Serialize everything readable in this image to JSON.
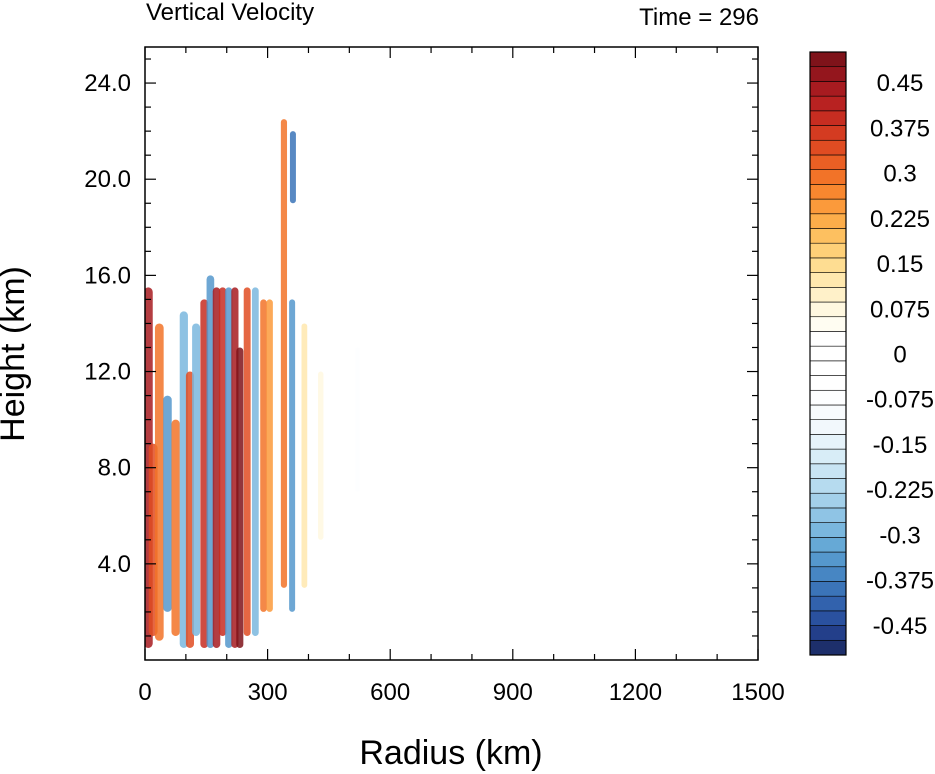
{
  "chart_data": {
    "type": "heatmap",
    "title": "Vertical Velocity",
    "time_label": "Time = 296",
    "xlabel": "Radius (km)",
    "ylabel": "Height (km)",
    "xlim": [
      0,
      1500
    ],
    "ylim": [
      0,
      25.5
    ],
    "x_ticks": [
      0,
      300,
      600,
      900,
      1200,
      1500
    ],
    "x_tick_labels": [
      "0",
      "300",
      "600",
      "900",
      "1200",
      "1500"
    ],
    "y_ticks": [
      4,
      8,
      12,
      16,
      20,
      24
    ],
    "y_tick_labels": [
      "4.0",
      "8.0",
      "12.0",
      "16.0",
      "20.0",
      "24.0"
    ],
    "colorbar": {
      "levels": [
        -0.5,
        -0.475,
        -0.45,
        -0.425,
        -0.4,
        -0.375,
        -0.35,
        -0.325,
        -0.3,
        -0.275,
        -0.25,
        -0.225,
        -0.2,
        -0.175,
        -0.15,
        -0.125,
        -0.1,
        -0.075,
        -0.05,
        -0.025,
        0,
        0.025,
        0.05,
        0.075,
        0.1,
        0.125,
        0.15,
        0.175,
        0.2,
        0.225,
        0.25,
        0.275,
        0.3,
        0.325,
        0.35,
        0.375,
        0.4,
        0.425,
        0.45,
        0.475,
        0.5
      ],
      "labels": [
        {
          "value": 0.45,
          "text": "0.45"
        },
        {
          "value": 0.375,
          "text": "0.375"
        },
        {
          "value": 0.3,
          "text": "0.3"
        },
        {
          "value": 0.225,
          "text": "0.225"
        },
        {
          "value": 0.15,
          "text": "0.15"
        },
        {
          "value": 0.075,
          "text": "0.075"
        },
        {
          "value": 0,
          "text": "0"
        },
        {
          "value": -0.075,
          "text": "-0.075"
        },
        {
          "value": -0.15,
          "text": "-0.15"
        },
        {
          "value": -0.225,
          "text": "-0.225"
        },
        {
          "value": -0.3,
          "text": "-0.3"
        },
        {
          "value": -0.375,
          "text": "-0.375"
        },
        {
          "value": -0.45,
          "text": "-0.45"
        }
      ],
      "colors": [
        "#1d2f6b",
        "#233f8a",
        "#2a519f",
        "#3262ad",
        "#3b74b8",
        "#4786c3",
        "#5598cd",
        "#66a9d6",
        "#7ab7de",
        "#8fc4e5",
        "#a3d0ea",
        "#b6dbef",
        "#c8e4f3",
        "#d8edf7",
        "#e6f3fa",
        "#f2f8fc",
        "#f8fbfd",
        "#fdfeff",
        "#ffffff",
        "#ffffff",
        "#ffffff",
        "#ffffff",
        "#fffdf2",
        "#fff8e0",
        "#fff1c9",
        "#ffe8ae",
        "#fedd92",
        "#fed078",
        "#fdc060",
        "#fcad4a",
        "#fb9a3b",
        "#f8872f",
        "#f27328",
        "#ea5f24",
        "#e04c22",
        "#d43b21",
        "#c72d21",
        "#b82221",
        "#a71b20",
        "#94161d",
        "#7f131a"
      ]
    },
    "features": [
      {
        "x": 8,
        "y0": 0.5,
        "y1": 15.5,
        "w": 0.45
      },
      {
        "x": 20,
        "y0": 1.0,
        "y1": 9.0,
        "w": 0.35
      },
      {
        "x": 35,
        "y0": 0.8,
        "y1": 14.0,
        "w": 0.3
      },
      {
        "x": 55,
        "y0": 2.0,
        "y1": 11.0,
        "w": -0.35
      },
      {
        "x": 75,
        "y0": 1.0,
        "y1": 10.0,
        "w": 0.3
      },
      {
        "x": 95,
        "y0": 0.5,
        "y1": 14.5,
        "w": -0.3
      },
      {
        "x": 110,
        "y0": 0.5,
        "y1": 12.0,
        "w": 0.35
      },
      {
        "x": 125,
        "y0": 1.0,
        "y1": 14.0,
        "w": -0.3
      },
      {
        "x": 145,
        "y0": 0.5,
        "y1": 15.0,
        "w": 0.4
      },
      {
        "x": 160,
        "y0": 0.5,
        "y1": 16.0,
        "w": -0.35
      },
      {
        "x": 175,
        "y0": 0.5,
        "y1": 15.5,
        "w": 0.45
      },
      {
        "x": 190,
        "y0": 1.0,
        "y1": 15.5,
        "w": 0.4
      },
      {
        "x": 205,
        "y0": 0.5,
        "y1": 15.5,
        "w": -0.35
      },
      {
        "x": 220,
        "y0": 0.5,
        "y1": 15.5,
        "w": 0.45
      },
      {
        "x": 232,
        "y0": 0.5,
        "y1": 13.0,
        "w": 0.5
      },
      {
        "x": 250,
        "y0": 1.0,
        "y1": 15.5,
        "w": 0.35
      },
      {
        "x": 270,
        "y0": 1.0,
        "y1": 15.5,
        "w": -0.3
      },
      {
        "x": 290,
        "y0": 2.0,
        "y1": 15.0,
        "w": 0.3
      },
      {
        "x": 305,
        "y0": 2.0,
        "y1": 15.0,
        "w": 0.25
      },
      {
        "x": 340,
        "y0": 3.0,
        "y1": 22.5,
        "w": 0.3
      },
      {
        "x": 360,
        "y0": 2.0,
        "y1": 15.0,
        "w": -0.35
      },
      {
        "x": 362,
        "y0": 19.0,
        "y1": 22.0,
        "w": -0.4
      },
      {
        "x": 390,
        "y0": 3.0,
        "y1": 14.0,
        "w": 0.12
      },
      {
        "x": 430,
        "y0": 5.0,
        "y1": 12.0,
        "w": 0.08
      },
      {
        "x": 520,
        "y0": 7.0,
        "y1": 13.0,
        "w": -0.08
      }
    ]
  }
}
